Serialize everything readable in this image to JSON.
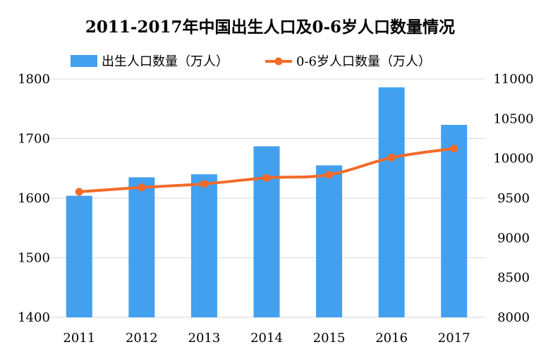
{
  "chart_data": {
    "type": "bar",
    "title": "2011-2017年中国出生人口及0-6岁人口数量情况",
    "categories": [
      "2011",
      "2012",
      "2013",
      "2014",
      "2015",
      "2016",
      "2017"
    ],
    "series": [
      {
        "name": "出生人口数量（万人）",
        "type": "bar",
        "axis": "left",
        "color": "#42a0ef",
        "values": [
          1604,
          1635,
          1640,
          1687,
          1655,
          1786,
          1723
        ]
      },
      {
        "name": "0-6岁人口数量（万人）",
        "type": "line",
        "axis": "right",
        "color": "#f26b2a",
        "values": [
          9580,
          9635,
          9680,
          9755,
          9795,
          10010,
          10125
        ]
      }
    ],
    "y_left": {
      "min": 1400,
      "max": 1800,
      "ticks": [
        1400,
        1500,
        1600,
        1700,
        1800
      ]
    },
    "y_right": {
      "min": 8000,
      "max": 11000,
      "ticks": [
        8000,
        8500,
        9000,
        9500,
        10000,
        10500,
        11000
      ]
    },
    "grid": true,
    "legend": "top"
  }
}
